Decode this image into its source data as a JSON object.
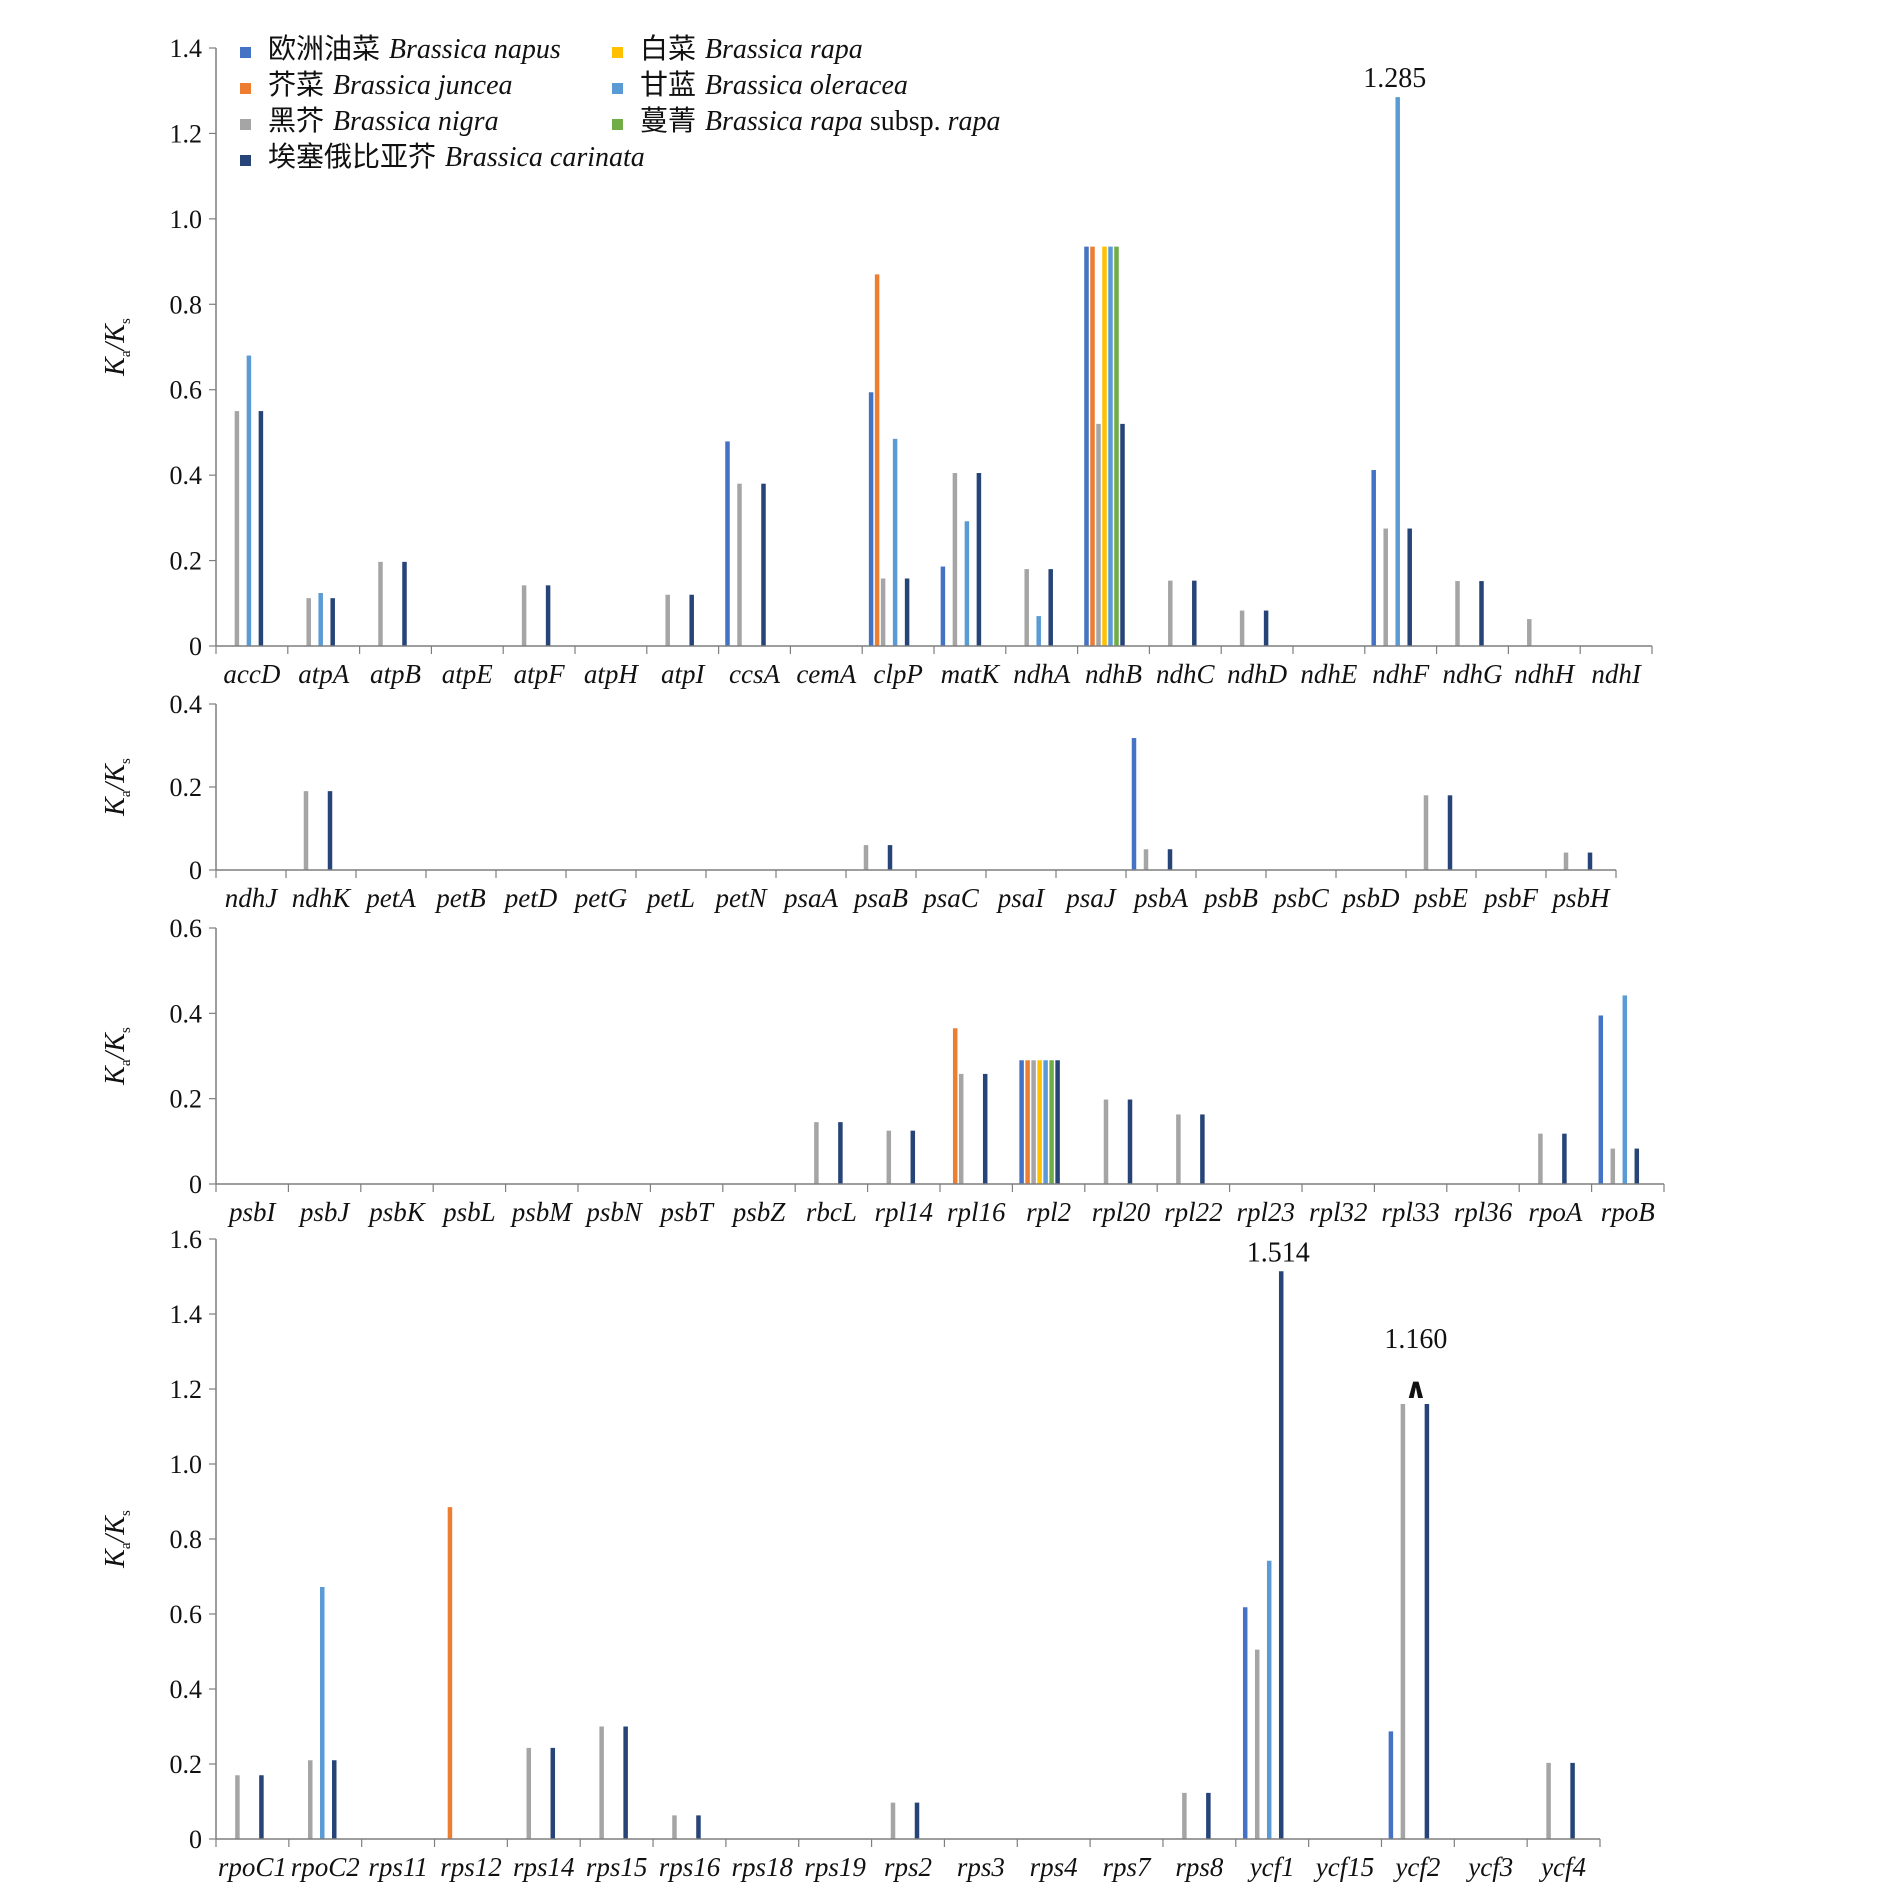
{
  "colors": {
    "napus": "#4472C4",
    "juncea": "#ED7D31",
    "nigra": "#A5A5A5",
    "rapa": "#FFC000",
    "oleracea": "#5B9BD5",
    "turnip": "#70AD47",
    "carinata": "#264478"
  },
  "chart_data": [
    {
      "type": "bar",
      "ylabel": "Ka/Ks",
      "ylim": [
        0,
        1.4
      ],
      "ticks": [
        "0",
        "0.2",
        "0.4",
        "0.6",
        "0.8",
        "1.0",
        "1.2",
        "1.4"
      ],
      "legend": [
        {
          "key": "napus",
          "cn": "欧洲油菜",
          "latin": "Brassica napus",
          "extra": ""
        },
        {
          "key": "rapa",
          "cn": "白菜",
          "latin": "Brassica rapa",
          "extra": ""
        },
        {
          "key": "juncea",
          "cn": "芥菜",
          "latin": "Brassica juncea",
          "extra": ""
        },
        {
          "key": "oleracea",
          "cn": "甘蓝",
          "latin": "Brassica oleracea",
          "extra": ""
        },
        {
          "key": "nigra",
          "cn": "黑芥",
          "latin": "Brassica nigra",
          "extra": ""
        },
        {
          "key": "turnip",
          "cn": "蔓菁",
          "latin": "Brassica rapa",
          "extra": "subsp. rapa"
        },
        {
          "key": "carinata",
          "cn": "埃塞俄比亚芥",
          "latin": "Brassica carinata",
          "extra": ""
        }
      ],
      "categories": [
        "accD",
        "atpA",
        "atpB",
        "atpE",
        "atpF",
        "atpH",
        "atpI",
        "ccsA",
        "cemA",
        "clpP",
        "matK",
        "ndhA",
        "ndhB",
        "ndhC",
        "ndhD",
        "ndhE",
        "ndhF",
        "ndhG",
        "ndhH",
        "ndhI"
      ],
      "series": [
        {
          "key": "napus",
          "values": [
            0,
            0,
            0,
            0,
            0,
            0,
            0,
            0.479,
            0,
            0.594,
            0.186,
            0,
            0.935,
            0,
            0,
            0,
            0.412,
            0,
            0,
            0
          ]
        },
        {
          "key": "juncea",
          "values": [
            0,
            0,
            0,
            0,
            0,
            0,
            0,
            0,
            0,
            0.87,
            0,
            0,
            0.935,
            0,
            0,
            0,
            0,
            0,
            0,
            0
          ]
        },
        {
          "key": "nigra",
          "values": [
            0.55,
            0.112,
            0.197,
            0,
            0.142,
            0,
            0.12,
            0.38,
            0,
            0.158,
            0.405,
            0.18,
            0.52,
            0.153,
            0.083,
            0,
            0.275,
            0.152,
            0.063,
            0
          ]
        },
        {
          "key": "rapa",
          "values": [
            0,
            0,
            0,
            0,
            0,
            0,
            0,
            0,
            0,
            0,
            0,
            0,
            0.935,
            0,
            0,
            0,
            0,
            0,
            0,
            0
          ]
        },
        {
          "key": "oleracea",
          "values": [
            0.68,
            0.124,
            0,
            0,
            0,
            0,
            0,
            0,
            0,
            0.485,
            0.292,
            0.07,
            0.935,
            0,
            0,
            0,
            1.285,
            0,
            0,
            0
          ]
        },
        {
          "key": "turnip",
          "values": [
            0,
            0,
            0,
            0,
            0,
            0,
            0,
            0,
            0,
            0,
            0,
            0,
            0.935,
            0,
            0,
            0,
            0,
            0,
            0,
            0
          ]
        },
        {
          "key": "carinata",
          "values": [
            0.55,
            0.112,
            0.197,
            0,
            0.142,
            0,
            0.12,
            0.38,
            0,
            0.158,
            0.405,
            0.18,
            0.52,
            0.153,
            0.083,
            0,
            0.275,
            0.152,
            0,
            0
          ]
        }
      ],
      "annotations": [
        {
          "category": "ndhF",
          "series": "oleracea",
          "text": "1.285"
        }
      ]
    },
    {
      "type": "bar",
      "ylabel": "Ka/Ks",
      "ylim": [
        0,
        0.4
      ],
      "ticks": [
        "0",
        "0.2",
        "0.4"
      ],
      "categories": [
        "ndhJ",
        "ndhK",
        "petA",
        "petB",
        "petD",
        "petG",
        "petL",
        "petN",
        "psaA",
        "psaB",
        "psaC",
        "psaI",
        "psaJ",
        "psbA",
        "psbB",
        "psbC",
        "psbD",
        "psbE",
        "psbF",
        "psbH"
      ],
      "series": [
        {
          "key": "napus",
          "values": [
            0,
            0,
            0,
            0,
            0,
            0,
            0,
            0,
            0,
            0,
            0,
            0,
            0,
            0.318,
            0,
            0,
            0,
            0,
            0,
            0
          ]
        },
        {
          "key": "juncea",
          "values": [
            0,
            0,
            0,
            0,
            0,
            0,
            0,
            0,
            0,
            0,
            0,
            0,
            0,
            0,
            0,
            0,
            0,
            0,
            0,
            0
          ]
        },
        {
          "key": "nigra",
          "values": [
            0,
            0.19,
            0,
            0,
            0,
            0,
            0,
            0,
            0,
            0.06,
            0,
            0,
            0,
            0.05,
            0,
            0,
            0,
            0.18,
            0,
            0.042
          ]
        },
        {
          "key": "rapa",
          "values": [
            0,
            0,
            0,
            0,
            0,
            0,
            0,
            0,
            0,
            0,
            0,
            0,
            0,
            0,
            0,
            0,
            0,
            0,
            0,
            0
          ]
        },
        {
          "key": "oleracea",
          "values": [
            0,
            0,
            0,
            0,
            0,
            0,
            0,
            0,
            0,
            0,
            0,
            0,
            0,
            0,
            0,
            0,
            0,
            0,
            0,
            0
          ]
        },
        {
          "key": "turnip",
          "values": [
            0,
            0,
            0,
            0,
            0,
            0,
            0,
            0,
            0,
            0,
            0,
            0,
            0,
            0,
            0,
            0,
            0,
            0,
            0,
            0
          ]
        },
        {
          "key": "carinata",
          "values": [
            0,
            0.19,
            0,
            0,
            0,
            0,
            0,
            0,
            0,
            0.06,
            0,
            0,
            0,
            0.05,
            0,
            0,
            0,
            0.18,
            0,
            0.042
          ]
        }
      ],
      "annotations": []
    },
    {
      "type": "bar",
      "ylabel": "Ka/Ks",
      "ylim": [
        0,
        0.6
      ],
      "ticks": [
        "0",
        "0.2",
        "0.4",
        "0.6"
      ],
      "categories": [
        "psbI",
        "psbJ",
        "psbK",
        "psbL",
        "psbM",
        "psbN",
        "psbT",
        "psbZ",
        "rbcL",
        "rpl14",
        "rpl16",
        "rpl2",
        "rpl20",
        "rpl22",
        "rpl23",
        "rpl32",
        "rpl33",
        "rpl36",
        "rpoA",
        "rpoB"
      ],
      "series": [
        {
          "key": "napus",
          "values": [
            0,
            0,
            0,
            0,
            0,
            0,
            0,
            0,
            0,
            0,
            0,
            0.29,
            0,
            0,
            0,
            0,
            0,
            0,
            0,
            0.395
          ]
        },
        {
          "key": "juncea",
          "values": [
            0,
            0,
            0,
            0,
            0,
            0,
            0,
            0,
            0,
            0,
            0.365,
            0.29,
            0,
            0,
            0,
            0,
            0,
            0,
            0,
            0
          ]
        },
        {
          "key": "nigra",
          "values": [
            0,
            0,
            0,
            0,
            0,
            0,
            0,
            0,
            0.145,
            0.125,
            0.258,
            0.29,
            0.198,
            0.163,
            0,
            0,
            0,
            0,
            0.118,
            0.083
          ]
        },
        {
          "key": "rapa",
          "values": [
            0,
            0,
            0,
            0,
            0,
            0,
            0,
            0,
            0,
            0,
            0,
            0.29,
            0,
            0,
            0,
            0,
            0,
            0,
            0,
            0
          ]
        },
        {
          "key": "oleracea",
          "values": [
            0,
            0,
            0,
            0,
            0,
            0,
            0,
            0,
            0,
            0,
            0,
            0.29,
            0,
            0,
            0,
            0,
            0,
            0,
            0,
            0.442
          ]
        },
        {
          "key": "turnip",
          "values": [
            0,
            0,
            0,
            0,
            0,
            0,
            0,
            0,
            0,
            0,
            0,
            0.29,
            0,
            0,
            0,
            0,
            0,
            0,
            0,
            0
          ]
        },
        {
          "key": "carinata",
          "values": [
            0,
            0,
            0,
            0,
            0,
            0,
            0,
            0,
            0.145,
            0.125,
            0.258,
            0.29,
            0.198,
            0.163,
            0,
            0,
            0,
            0,
            0.118,
            0.083
          ]
        }
      ],
      "annotations": []
    },
    {
      "type": "bar",
      "ylabel": "Ka/Ks",
      "ylim": [
        0,
        1.6
      ],
      "ticks": [
        "0",
        "0.2",
        "0.4",
        "0.6",
        "0.8",
        "1.0",
        "1.2",
        "1.4",
        "1.6"
      ],
      "categories": [
        "rpoC1",
        "rpoC2",
        "rps11",
        "rps12",
        "rps14",
        "rps15",
        "rps16",
        "rps18",
        "rps19",
        "rps2",
        "rps3",
        "rps4",
        "rps7",
        "rps8",
        "ycf1",
        "ycf15",
        "ycf2",
        "ycf3",
        "ycf4"
      ],
      "series": [
        {
          "key": "napus",
          "values": [
            0,
            0,
            0,
            0,
            0,
            0,
            0,
            0,
            0,
            0,
            0,
            0,
            0,
            0,
            0.618,
            0,
            0.287,
            0,
            0
          ]
        },
        {
          "key": "juncea",
          "values": [
            0,
            0,
            0,
            0.885,
            0,
            0,
            0,
            0,
            0,
            0,
            0,
            0,
            0,
            0,
            0,
            0,
            0,
            0,
            0
          ]
        },
        {
          "key": "nigra",
          "values": [
            0.17,
            0.21,
            0,
            0,
            0.243,
            0.3,
            0.063,
            0,
            0,
            0.097,
            0,
            0,
            0,
            0.123,
            0.505,
            0,
            1.16,
            0,
            0.203
          ]
        },
        {
          "key": "rapa",
          "values": [
            0,
            0,
            0,
            0,
            0,
            0,
            0,
            0,
            0,
            0,
            0,
            0,
            0,
            0,
            0,
            0,
            0,
            0,
            0
          ]
        },
        {
          "key": "oleracea",
          "values": [
            0,
            0.672,
            0,
            0,
            0,
            0,
            0,
            0,
            0,
            0,
            0,
            0,
            0,
            0,
            0.742,
            0,
            0,
            0,
            0
          ]
        },
        {
          "key": "turnip",
          "values": [
            0,
            0,
            0,
            0,
            0,
            0,
            0,
            0,
            0,
            0,
            0,
            0,
            0,
            0,
            0,
            0,
            0,
            0,
            0
          ]
        },
        {
          "key": "carinata",
          "values": [
            0.17,
            0.21,
            0,
            0,
            0.243,
            0.3,
            0.063,
            0,
            0,
            0.097,
            0,
            0,
            0,
            0.123,
            1.514,
            0,
            1.16,
            0,
            0.203
          ]
        }
      ],
      "annotations": [
        {
          "category": "ycf1",
          "series": "carinata",
          "text": "1.514"
        },
        {
          "category": "ycf2",
          "series": "nigra",
          "text": "1.160",
          "marker": "∧"
        }
      ]
    }
  ]
}
